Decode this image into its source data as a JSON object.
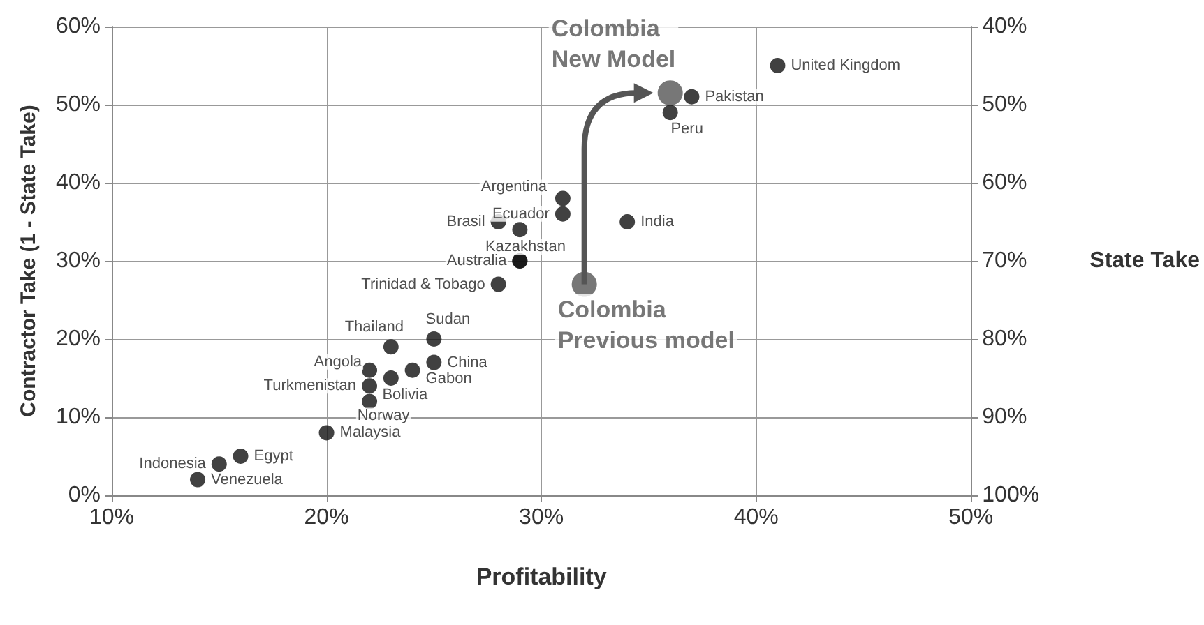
{
  "chart_data": {
    "type": "scatter",
    "xlabel": "Profitability",
    "ylabel": "Contractor Take (1 - State Take)",
    "y2label": "State Take",
    "xlim": [
      10,
      50
    ],
    "xticks": [
      {
        "value": 10,
        "label": "10%"
      },
      {
        "value": 20,
        "label": "20%"
      },
      {
        "value": 30,
        "label": "30%"
      },
      {
        "value": 40,
        "label": "40%"
      },
      {
        "value": 50,
        "label": "50%"
      }
    ],
    "ylim": [
      0,
      60
    ],
    "yticks": [
      {
        "value": 0,
        "label": "0%"
      },
      {
        "value": 10,
        "label": "10%"
      },
      {
        "value": 20,
        "label": "20%"
      },
      {
        "value": 30,
        "label": "30%"
      },
      {
        "value": 40,
        "label": "40%"
      },
      {
        "value": 50,
        "label": "50%"
      },
      {
        "value": 60,
        "label": "60%"
      }
    ],
    "y2lim": [
      100,
      40
    ],
    "y2ticks": [
      {
        "value": 40,
        "label": "40%"
      },
      {
        "value": 50,
        "label": "50%"
      },
      {
        "value": 60,
        "label": "60%"
      },
      {
        "value": 70,
        "label": "70%"
      },
      {
        "value": 80,
        "label": "80%"
      },
      {
        "value": 90,
        "label": "90%"
      },
      {
        "value": 100,
        "label": "100%"
      }
    ],
    "grid": true,
    "marker": "circle",
    "series": [
      {
        "color": "#111111",
        "x": [
          41,
          37,
          36,
          31,
          31,
          28,
          29,
          34,
          29,
          29,
          28,
          23,
          25,
          25,
          22,
          22,
          24,
          23,
          22,
          20,
          16,
          15,
          14
        ],
        "values": [
          55,
          51,
          49,
          38,
          36,
          35,
          34,
          35,
          30,
          30,
          27,
          19,
          20,
          17,
          16,
          14,
          16,
          15,
          12,
          8,
          5,
          4,
          2
        ],
        "value_labels": [
          "United Kingdom",
          "Pakistan",
          "Peru",
          "Argentina",
          "Ecuador",
          "Brasil",
          null,
          "India",
          "Kazakhstan",
          "Australia",
          "Trinidad & Tobago",
          "Thailand",
          "Sudan",
          "China",
          "Angola",
          "Turkmenistan",
          "Gabon",
          "Bolivia",
          "Norway",
          "Malaysia",
          "Egypt",
          "Indonesia",
          "Venezuela"
        ]
      },
      {
        "color": "#555555",
        "x": [
          32,
          36
        ],
        "values": [
          27,
          51.5
        ],
        "value_labels": [
          "Colombia\nPrevious model",
          "Colombia\nNew Model"
        ]
      }
    ]
  }
}
